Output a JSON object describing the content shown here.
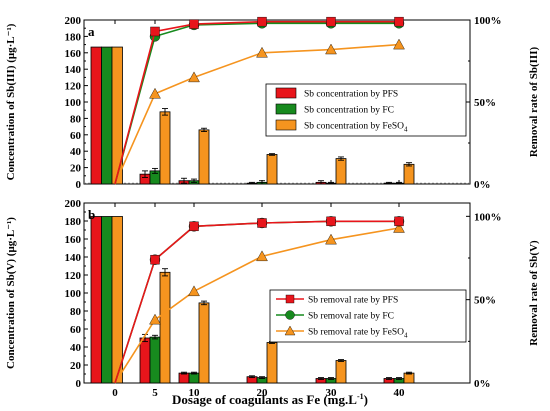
{
  "chart_data": [
    {
      "panel": "a",
      "type": "bar+line",
      "categories": [
        "0",
        "5",
        "10",
        "20",
        "30",
        "40"
      ],
      "xlabel_html": "Dosage of coagulants as Fe (mg.L⁻¹)",
      "ylabel_left": "Concentration of Sb(III) (μg·L⁻¹)",
      "ylabel_right": "Removal rate of Sb(III)",
      "ylim_left": [
        0,
        200
      ],
      "yticks_left": [
        0,
        20,
        40,
        60,
        80,
        100,
        120,
        140,
        160,
        180,
        200
      ],
      "ylim_right": [
        0,
        1.0
      ],
      "yticks_right": [
        "0%",
        "50%",
        "100%"
      ],
      "legend": [
        {
          "label": "Sb concentration by PFS",
          "color": "#e8151b"
        },
        {
          "label": "Sb concentration by FC",
          "color": "#178a1e"
        },
        {
          "label_main": "Sb concentration by FeSO",
          "label_sub": "4",
          "color": "#f5941f"
        }
      ],
      "bars": [
        {
          "name": "PFS",
          "color": "#e8151b",
          "values": [
            167,
            12,
            4,
            1,
            2,
            1
          ],
          "errors": [
            0,
            4,
            3,
            1,
            2,
            1
          ]
        },
        {
          "name": "FC",
          "color": "#178a1e",
          "values": [
            167,
            16,
            4,
            2,
            1,
            1
          ],
          "errors": [
            0,
            3,
            2,
            2,
            1,
            1
          ]
        },
        {
          "name": "FeSO4",
          "color": "#f5941f",
          "values": [
            167,
            88,
            66,
            36,
            31,
            24
          ],
          "errors": [
            0,
            4,
            2,
            1,
            2,
            2
          ]
        }
      ],
      "lines": [
        {
          "name": "PFS",
          "color": "#e8151b",
          "marker": "square",
          "values": [
            0.0,
            0.93,
            0.975,
            0.99,
            0.99,
            0.99
          ]
        },
        {
          "name": "FC",
          "color": "#178a1e",
          "marker": "circle",
          "values": [
            0.0,
            0.9,
            0.97,
            0.98,
            0.98,
            0.98
          ]
        },
        {
          "name": "FeSO4",
          "color": "#f5941f",
          "marker": "triangle",
          "values": [
            0.0,
            0.55,
            0.65,
            0.8,
            0.82,
            0.85
          ]
        }
      ]
    },
    {
      "panel": "b",
      "type": "bar+line",
      "categories": [
        "0",
        "5",
        "10",
        "20",
        "30",
        "40"
      ],
      "ylabel_left": "Concentration of Sb(V) (μg·L⁻¹)",
      "ylabel_right": "Removal rate of Sb(V)",
      "ylim_left": [
        0,
        200
      ],
      "yticks_left": [
        0,
        20,
        40,
        60,
        80,
        100,
        120,
        140,
        160,
        180,
        200
      ],
      "ylim_right": [
        0,
        1.08
      ],
      "yticks_right": [
        "0%",
        "50%",
        "100%"
      ],
      "legend": [
        {
          "label": "Sb removal rate by PFS",
          "color": "#e8151b",
          "marker": "square"
        },
        {
          "label": "Sb removal rate by FC",
          "color": "#178a1e",
          "marker": "circle"
        },
        {
          "label_main": "Sb removal rate by FeSO",
          "label_sub": "4",
          "color": "#f5941f",
          "marker": "triangle"
        }
      ],
      "bars": [
        {
          "name": "PFS",
          "color": "#e8151b",
          "values": [
            185,
            50,
            11,
            7,
            5,
            5
          ],
          "errors": [
            0,
            4,
            1,
            1,
            1,
            1
          ]
        },
        {
          "name": "FC",
          "color": "#178a1e",
          "values": [
            185,
            51,
            11,
            6,
            5,
            5
          ],
          "errors": [
            0,
            2,
            1,
            1,
            1,
            1
          ]
        },
        {
          "name": "FeSO4",
          "color": "#f5941f",
          "values": [
            185,
            123,
            89,
            45,
            25,
            11
          ],
          "errors": [
            0,
            4,
            2,
            1,
            1,
            1
          ]
        }
      ],
      "lines": [
        {
          "name": "PFS",
          "color": "#e8151b",
          "marker": "square",
          "values": [
            0.0,
            0.74,
            0.94,
            0.96,
            0.97,
            0.97
          ]
        },
        {
          "name": "FC",
          "color": "#178a1e",
          "marker": "circle",
          "values": [
            0.0,
            0.74,
            0.94,
            0.96,
            0.97,
            0.97
          ]
        },
        {
          "name": "FeSO4",
          "color": "#f5941f",
          "marker": "triangle",
          "values": [
            0.0,
            0.38,
            0.55,
            0.76,
            0.86,
            0.93
          ]
        }
      ]
    }
  ],
  "xlabel_main": "Dosage of coagulants as Fe (mg.L",
  "xlabel_sup": "-1",
  "xlabel_end": ")"
}
